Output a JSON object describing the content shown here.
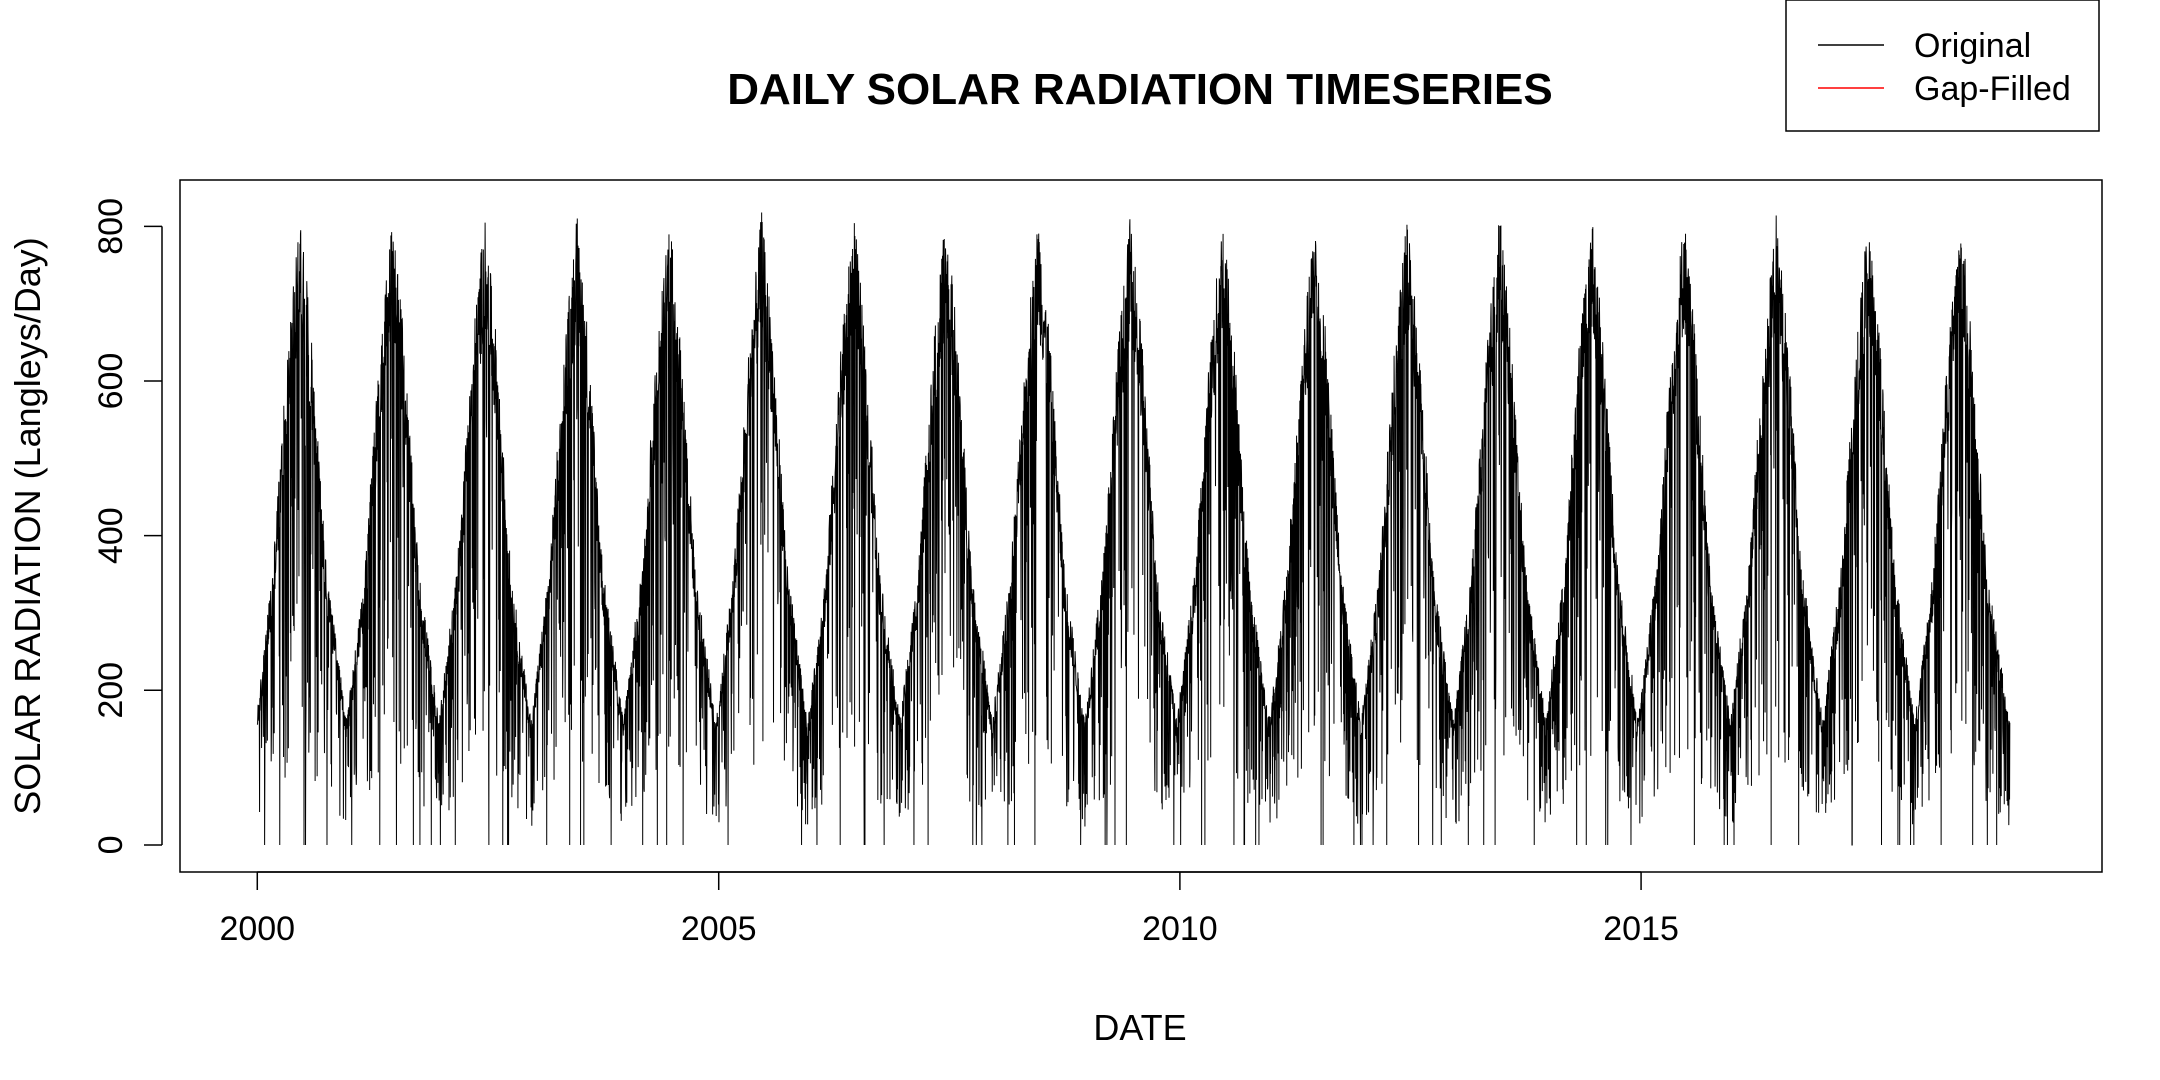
{
  "chart_data": {
    "type": "line",
    "title": "DAILY SOLAR RADIATION TIMESERIES",
    "xlabel": "DATE",
    "ylabel": "SOLAR RADIATION (Langleys/Day)",
    "xlim": [
      "1999-03-01",
      "2019-12-31"
    ],
    "ylim": [
      -35,
      860
    ],
    "x_ticks": [
      {
        "label": "2000",
        "date": "2000-01-01"
      },
      {
        "label": "2005",
        "date": "2005-01-01"
      },
      {
        "label": "2010",
        "date": "2010-01-01"
      },
      {
        "label": "2015",
        "date": "2015-01-01"
      }
    ],
    "y_ticks": [
      0,
      200,
      400,
      600,
      800
    ],
    "grid": false,
    "legend": {
      "position": "top-right",
      "entries": [
        {
          "label": "Original",
          "color": "#000000"
        },
        {
          "label": "Gap-Filled",
          "color": "#ff0000"
        }
      ]
    },
    "series": [
      {
        "name": "Original",
        "color": "#000000",
        "start_date": "2000-01-01",
        "end_date": "2018-12-31",
        "x": [
          "2000-01-01",
          "2000-03-01",
          "2000-05-01",
          "2000-06-20",
          "2000-08-01",
          "2000-10-01",
          "2000-12-20",
          "2001-03-01",
          "2001-05-01",
          "2001-06-20",
          "2001-08-01",
          "2001-10-01",
          "2001-12-20",
          "2002-03-01",
          "2002-05-01",
          "2002-06-20",
          "2002-08-01",
          "2002-10-01",
          "2002-12-20",
          "2003-03-01",
          "2003-05-01",
          "2003-06-20",
          "2003-08-01",
          "2003-10-01",
          "2003-12-20",
          "2004-03-01",
          "2004-05-01",
          "2004-06-20",
          "2004-08-01",
          "2004-10-01",
          "2004-12-20",
          "2005-03-01",
          "2005-05-01",
          "2005-06-20",
          "2005-08-01",
          "2005-10-01",
          "2005-12-20",
          "2006-03-01",
          "2006-05-01",
          "2006-06-20",
          "2006-08-01",
          "2006-10-01",
          "2006-12-20",
          "2007-03-01",
          "2007-05-01",
          "2007-06-20",
          "2007-08-01",
          "2007-10-01",
          "2007-12-20",
          "2008-03-01",
          "2008-05-01",
          "2008-06-20",
          "2008-08-01",
          "2008-10-01",
          "2008-12-20",
          "2009-03-01",
          "2009-05-01",
          "2009-06-20",
          "2009-08-01",
          "2009-10-01",
          "2009-12-20",
          "2010-03-01",
          "2010-05-01",
          "2010-06-20",
          "2010-08-01",
          "2010-10-01",
          "2010-12-20",
          "2011-03-01",
          "2011-05-01",
          "2011-06-20",
          "2011-08-01",
          "2011-10-01",
          "2011-12-20",
          "2012-03-01",
          "2012-05-01",
          "2012-06-20",
          "2012-08-01",
          "2012-10-01",
          "2012-12-20",
          "2013-03-01",
          "2013-05-01",
          "2013-06-20",
          "2013-08-01",
          "2013-10-01",
          "2013-12-20",
          "2014-03-01",
          "2014-05-01",
          "2014-06-20",
          "2014-08-01",
          "2014-10-01",
          "2014-12-20",
          "2015-03-01",
          "2015-05-01",
          "2015-06-20",
          "2015-08-01",
          "2015-10-01",
          "2015-12-20",
          "2016-03-01",
          "2016-05-01",
          "2016-06-20",
          "2016-08-01",
          "2016-10-01",
          "2016-12-20",
          "2017-03-01",
          "2017-05-01",
          "2017-06-20",
          "2017-08-01",
          "2017-10-01",
          "2017-12-20",
          "2018-03-01",
          "2018-05-01",
          "2018-06-20",
          "2018-08-01",
          "2018-10-01",
          "2018-12-31"
        ],
        "y": [
          160,
          330,
          600,
          760,
          620,
          330,
          150,
          330,
          600,
          760,
          620,
          330,
          150,
          330,
          600,
          760,
          620,
          330,
          150,
          330,
          600,
          760,
          620,
          330,
          150,
          330,
          600,
          760,
          620,
          330,
          150,
          330,
          600,
          760,
          620,
          330,
          150,
          330,
          600,
          760,
          620,
          330,
          150,
          330,
          600,
          760,
          620,
          330,
          150,
          330,
          600,
          760,
          620,
          330,
          150,
          330,
          600,
          760,
          620,
          330,
          150,
          330,
          600,
          760,
          620,
          330,
          150,
          330,
          600,
          760,
          620,
          330,
          150,
          330,
          600,
          760,
          620,
          330,
          150,
          330,
          600,
          760,
          620,
          330,
          150,
          330,
          600,
          760,
          620,
          330,
          150,
          330,
          600,
          760,
          620,
          330,
          150,
          330,
          600,
          760,
          620,
          330,
          150,
          330,
          600,
          760,
          620,
          330,
          150,
          330,
          600,
          760,
          620,
          330,
          150
        ]
      },
      {
        "name": "Gap-Filled",
        "color": "#ff0000",
        "x": [],
        "y": []
      }
    ]
  }
}
